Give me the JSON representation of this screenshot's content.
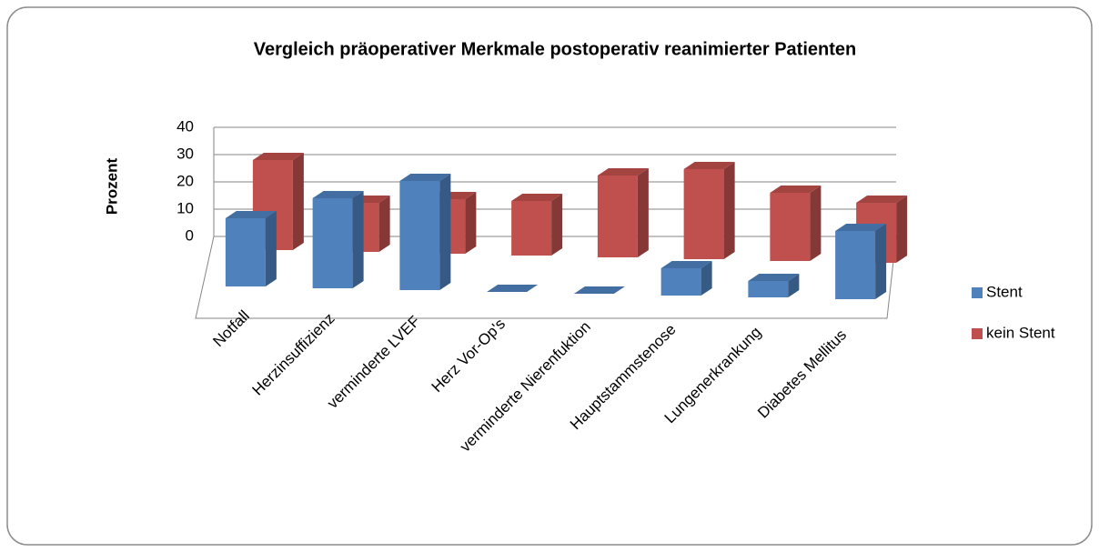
{
  "chart_data": {
    "type": "bar3d",
    "title": "Vergleich präoperativer Merkmale postoperativ reanimierter Patienten",
    "y_label": "Prozent",
    "categories": [
      "Notfall",
      "Herzinsuffizienz",
      "verminderte LVEF",
      "Herz Vor-Op's",
      "verminderte Nierenfuktion",
      "Hauptstammstenose",
      "Lungenerkrankung",
      "Diabetes Mellitus"
    ],
    "series": [
      {
        "name": "Stent",
        "color": "#4f81bd",
        "values": [
          25,
          33,
          40,
          0,
          0,
          10,
          6,
          25
        ]
      },
      {
        "name": "kein Stent",
        "color": "#c0504d",
        "values": [
          33,
          18,
          20,
          20,
          30,
          33,
          25,
          22
        ]
      }
    ],
    "ylim": [
      0,
      40
    ],
    "yticks": [
      0,
      10,
      20,
      30,
      40
    ],
    "grid": true,
    "legend": "right"
  }
}
